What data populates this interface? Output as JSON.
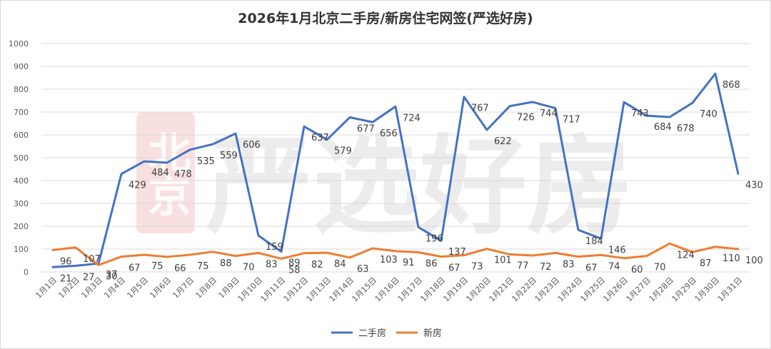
{
  "chart_data": {
    "type": "line",
    "title": "2026年1月北京二手房/新房住宅网签(严选好房)",
    "categories": [
      "1月1日",
      "1月2日",
      "1月3日",
      "1月4日",
      "1月5日",
      "1月6日",
      "1月7日",
      "1月8日",
      "1月9日",
      "1月10日",
      "1月11日",
      "1月12日",
      "1月13日",
      "1月14日",
      "1月15日",
      "1月16日",
      "1月17日",
      "1月18日",
      "1月19日",
      "1月20日",
      "1月21日",
      "1月22日",
      "1月23日",
      "1月24日",
      "1月25日",
      "1月26日",
      "1月27日",
      "1月28日",
      "1月29日",
      "1月30日",
      "1月31日"
    ],
    "ylim": [
      0,
      1000
    ],
    "yticks": [
      "0",
      "100",
      "200",
      "300",
      "400",
      "500",
      "600",
      "700",
      "800",
      "900",
      "1000"
    ],
    "grid": true,
    "legend": "bottom-center",
    "series": [
      {
        "name": "二手房",
        "color": "#4472c4",
        "values": [
          21,
          27,
          37,
          429,
          484,
          478,
          535,
          559,
          606,
          159,
          89,
          637,
          579,
          677,
          656,
          724,
          196,
          137,
          767,
          622,
          726,
          744,
          717,
          184,
          146,
          743,
          684,
          678,
          740,
          868,
          430
        ]
      },
      {
        "name": "新房",
        "color": "#ed7d31",
        "values": [
          96,
          107,
          30,
          67,
          75,
          66,
          75,
          88,
          70,
          83,
          58,
          82,
          84,
          63,
          103,
          91,
          86,
          67,
          73,
          101,
          77,
          72,
          83,
          67,
          74,
          60,
          70,
          124,
          87,
          110,
          100
        ]
      }
    ]
  },
  "watermark": {
    "seal_text": "北京",
    "brand_text": "严选好房",
    "seal_color": "#f4c7c7",
    "text_color": "#e6e6e6"
  }
}
